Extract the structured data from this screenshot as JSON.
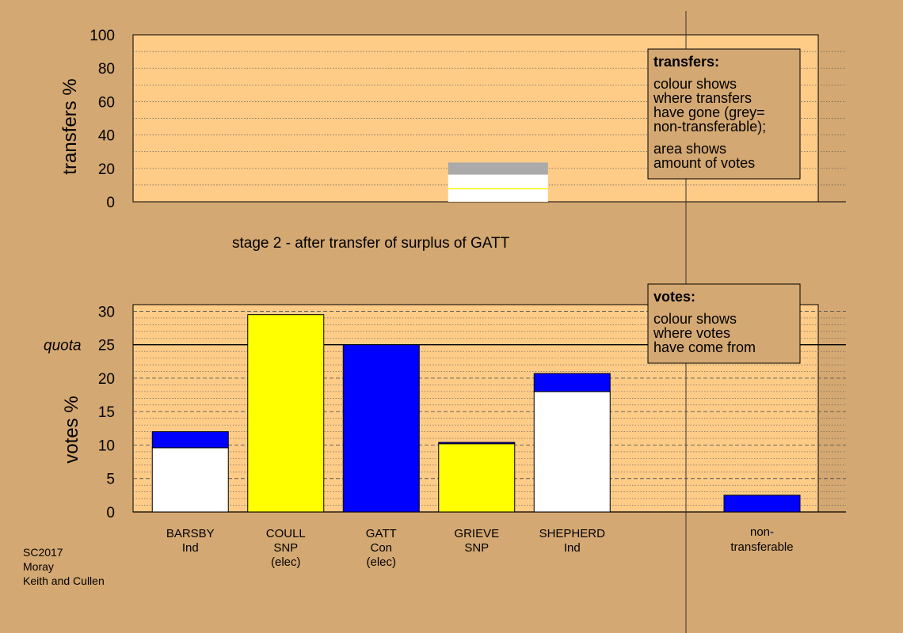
{
  "colors": {
    "background": "#d4a872",
    "plot_bg": "#ffcc88",
    "Con": "#0000ff",
    "SNP": "#ffff00",
    "Ind": "#ffffff",
    "nontransferable": "#aaaaaa",
    "legend_bg": "#d4a872"
  },
  "footer": {
    "line1": "SC2017",
    "line2": "Moray",
    "line3": "Keith and Cullen"
  },
  "chart_data": [
    {
      "type": "bar",
      "subtitle": "stage 2 - after transfer of surplus of GATT",
      "ylabel": "transfers %",
      "ylim": [
        0,
        100
      ],
      "yticks": [
        0,
        20,
        40,
        60,
        80,
        100
      ],
      "grid": true,
      "stacked_column": {
        "position": "GRIEVE",
        "segments": [
          {
            "party": "Ind",
            "label": "white (BARSBY)",
            "value": 7.5,
            "color": "#ffffff"
          },
          {
            "party": "SNP",
            "label": "yellow (COULL)",
            "value": 0.6,
            "color": "#ffff00"
          },
          {
            "party": "Ind",
            "label": "white (SHEPHERD)",
            "value": 8.2,
            "color": "#ffffff"
          },
          {
            "party": "none",
            "label": "grey (non-transferable)",
            "value": 7.2,
            "color": "#aaaaaa"
          }
        ]
      },
      "legend": {
        "title": "transfers:",
        "lines1": [
          "colour shows",
          "where transfers",
          "have gone (grey=",
          "non-transferable);"
        ],
        "lines2": [
          "area shows",
          "amount of votes"
        ],
        "placement": "top-right"
      }
    },
    {
      "type": "bar",
      "ylabel": "votes %",
      "ylim": [
        0,
        31
      ],
      "yticks": [
        0,
        5,
        10,
        15,
        20,
        25,
        30
      ],
      "quota": {
        "label": "quota",
        "value": 25
      },
      "grid": true,
      "categories": [
        {
          "name": "BARSBY",
          "party": "Ind",
          "note": ""
        },
        {
          "name": "COULL",
          "party": "SNP",
          "note": "(elec)"
        },
        {
          "name": "GATT",
          "party": "Con",
          "note": "(elec)"
        },
        {
          "name": "GRIEVE",
          "party": "SNP",
          "note": ""
        },
        {
          "name": "SHEPHERD",
          "party": "Ind",
          "note": ""
        }
      ],
      "bars": [
        {
          "candidate": "BARSBY",
          "segments": [
            {
              "from": "Ind",
              "value": 9.6,
              "color": "#ffffff"
            },
            {
              "from": "Con",
              "value": 2.4,
              "color": "#0000ff"
            }
          ]
        },
        {
          "candidate": "COULL",
          "segments": [
            {
              "from": "SNP",
              "value": 29.5,
              "color": "#ffff00"
            }
          ]
        },
        {
          "candidate": "GATT",
          "segments": [
            {
              "from": "Con",
              "value": 25.0,
              "color": "#0000ff"
            }
          ]
        },
        {
          "candidate": "GRIEVE",
          "segments": [
            {
              "from": "SNP",
              "value": 10.2,
              "color": "#ffff00"
            },
            {
              "from": "Con",
              "value": 0.2,
              "color": "#0000ff"
            }
          ]
        },
        {
          "candidate": "SHEPHERD",
          "segments": [
            {
              "from": "Ind",
              "value": 18.0,
              "color": "#ffffff"
            },
            {
              "from": "Con",
              "value": 2.7,
              "color": "#0000ff"
            }
          ]
        }
      ],
      "nontransferable": {
        "label1": "non-",
        "label2": "transferable",
        "value": 2.5,
        "color": "#0000ff"
      },
      "legend": {
        "title": "votes:",
        "lines1": [
          "colour shows",
          "where votes",
          "have come from"
        ],
        "placement": "top-right"
      }
    }
  ]
}
